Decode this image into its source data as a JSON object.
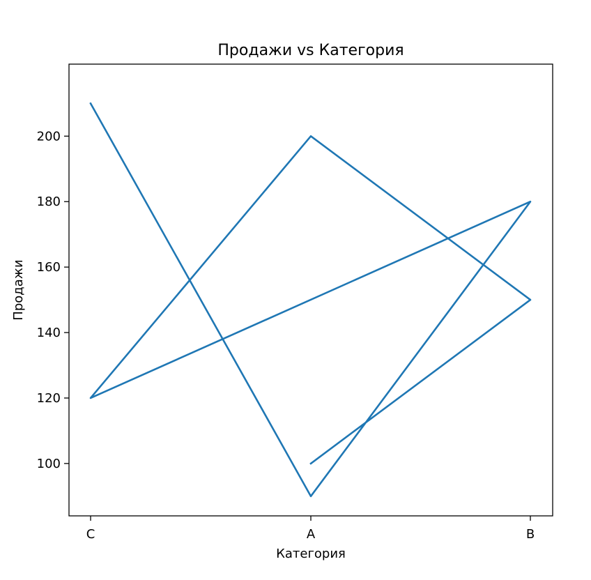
{
  "chart_data": {
    "type": "line",
    "title": "Продажи vs Категория",
    "xlabel": "Категория",
    "ylabel": "Продажи",
    "categories": [
      "C",
      "A",
      "B"
    ],
    "x": [
      "A",
      "B",
      "A",
      "C",
      "A",
      "B",
      "C",
      "A"
    ],
    "y": [
      100,
      150,
      200,
      120,
      150,
      180,
      120,
      90
    ],
    "ylim": [
      84,
      222
    ],
    "yticks": [
      100,
      120,
      140,
      160,
      180,
      200
    ],
    "grid": false,
    "line_color": "#1f77b4",
    "series": [
      {
        "x": [
          "A",
          "B",
          "A",
          "C",
          "B",
          "A",
          "C"
        ],
        "y": [
          100,
          150,
          200,
          120,
          180,
          90,
          210
        ]
      }
    ]
  }
}
